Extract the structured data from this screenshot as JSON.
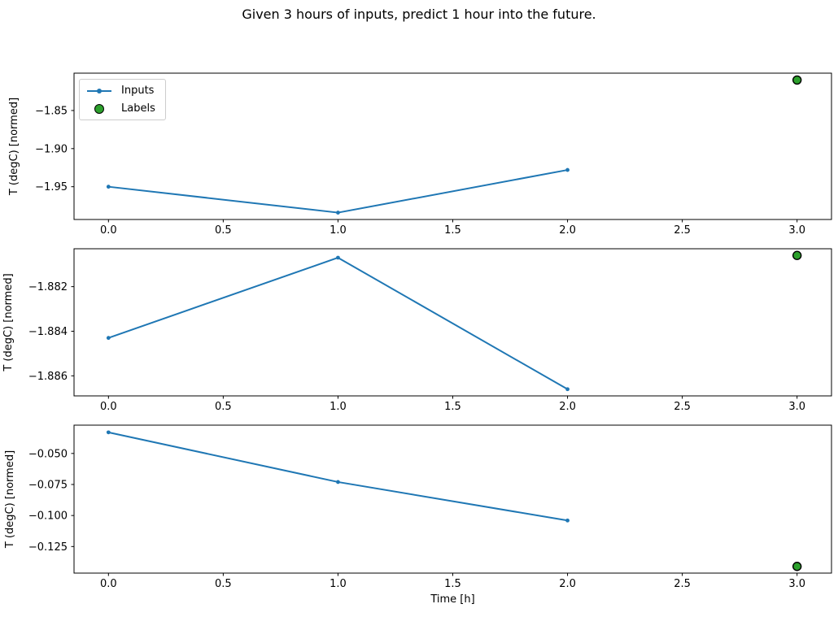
{
  "figure": {
    "title": "Given 3 hours of inputs, predict 1 hour into the future.",
    "xlabel": "Time [h]",
    "ylabel": "T (degC) [normed]",
    "colors": {
      "inputs": "#1f77b4",
      "labels_fill": "#2ca02c",
      "labels_edge": "#000000",
      "axis": "#000000",
      "text": "#000000",
      "legend_border": "#cccccc",
      "background": "#ffffff"
    },
    "legend": {
      "position": "upper-left-subplot-1",
      "entries": [
        {
          "label": "Inputs",
          "sample": "line-with-dot-marker"
        },
        {
          "label": "Labels",
          "sample": "green-scatter-dot"
        }
      ]
    }
  },
  "chart_data": [
    {
      "type": "line",
      "subplot": 1,
      "ylabel": "T (degC) [normed]",
      "xlabel": "",
      "xlim": [
        -0.15,
        3.15
      ],
      "ylim": [
        -1.993,
        -1.801
      ],
      "xticks": [
        0.0,
        0.5,
        1.0,
        1.5,
        2.0,
        2.5,
        3.0
      ],
      "xtick_labels": [
        "0.0",
        "0.5",
        "1.0",
        "1.5",
        "2.0",
        "2.5",
        "3.0"
      ],
      "yticks": [
        -1.85,
        -1.9,
        -1.95
      ],
      "ytick_labels": [
        "−1.85",
        "−1.90",
        "−1.95"
      ],
      "grid": false,
      "series": [
        {
          "name": "Inputs",
          "style": "line-marker",
          "x": [
            0,
            1,
            2
          ],
          "y": [
            -1.95,
            -1.984,
            -1.928
          ]
        },
        {
          "name": "Labels",
          "style": "scatter",
          "x": [
            3
          ],
          "y": [
            -1.81
          ]
        }
      ]
    },
    {
      "type": "line",
      "subplot": 2,
      "ylabel": "T (degC) [normed]",
      "xlabel": "",
      "xlim": [
        -0.15,
        3.15
      ],
      "ylim": [
        -1.8869,
        -1.8803
      ],
      "xticks": [
        0.0,
        0.5,
        1.0,
        1.5,
        2.0,
        2.5,
        3.0
      ],
      "xtick_labels": [
        "0.0",
        "0.5",
        "1.0",
        "1.5",
        "2.0",
        "2.5",
        "3.0"
      ],
      "yticks": [
        -1.882,
        -1.884,
        -1.886
      ],
      "ytick_labels": [
        "−1.882",
        "−1.884",
        "−1.886"
      ],
      "grid": false,
      "series": [
        {
          "name": "Inputs",
          "style": "line-marker",
          "x": [
            0,
            1,
            2
          ],
          "y": [
            -1.8843,
            -1.8807,
            -1.8866
          ]
        },
        {
          "name": "Labels",
          "style": "scatter",
          "x": [
            3
          ],
          "y": [
            -1.8806
          ]
        }
      ]
    },
    {
      "type": "line",
      "subplot": 3,
      "ylabel": "T (degC) [normed]",
      "xlabel": "Time [h]",
      "xlim": [
        -0.15,
        3.15
      ],
      "ylim": [
        -0.1464,
        -0.0272
      ],
      "xticks": [
        0.0,
        0.5,
        1.0,
        1.5,
        2.0,
        2.5,
        3.0
      ],
      "xtick_labels": [
        "0.0",
        "0.5",
        "1.0",
        "1.5",
        "2.0",
        "2.5",
        "3.0"
      ],
      "yticks": [
        -0.05,
        -0.075,
        -0.1,
        -0.125
      ],
      "ytick_labels": [
        "−0.050",
        "−0.075",
        "−0.100",
        "−0.125"
      ],
      "grid": false,
      "series": [
        {
          "name": "Inputs",
          "style": "line-marker",
          "x": [
            0,
            1,
            2
          ],
          "y": [
            -0.033,
            -0.073,
            -0.104
          ]
        },
        {
          "name": "Labels",
          "style": "scatter",
          "x": [
            3
          ],
          "y": [
            -0.141
          ]
        }
      ]
    }
  ]
}
